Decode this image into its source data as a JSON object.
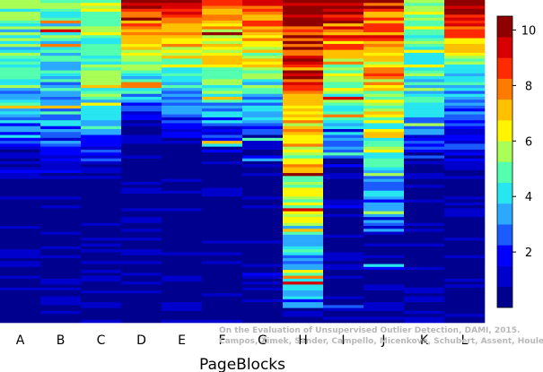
{
  "chart_data": {
    "type": "heatmap",
    "xlabel": "PageBlocks",
    "categories": [
      "A",
      "B",
      "C",
      "D",
      "E",
      "F",
      "G",
      "H",
      "I",
      "J",
      "K",
      "L"
    ],
    "colorbar": {
      "min": 0,
      "max": 10.5,
      "ticks": [
        2,
        4,
        6,
        8,
        10
      ],
      "tick_labels": [
        "2",
        "4",
        "6",
        "8",
        "10"
      ],
      "bands": [
        "#00008F",
        "#0000CC",
        "#0000FF",
        "#1A5CFF",
        "#2BA9FF",
        "#28E6F0",
        "#55FFB0",
        "#A9FF55",
        "#FFF500",
        "#FFC000",
        "#FF7A00",
        "#FF2A00",
        "#D60000",
        "#8F0000"
      ]
    },
    "columns": [
      {
        "name": "A",
        "top_value": 5.0,
        "mid_value": 2.5,
        "decay": 0.32,
        "mid_end": 0.55,
        "low_value": 0.4,
        "noise": 2.6,
        "spikes": 0.06
      },
      {
        "name": "B",
        "top_value": 4.8,
        "mid_value": 2.4,
        "decay": 0.32,
        "mid_end": 0.55,
        "low_value": 0.4,
        "noise": 2.5,
        "spikes": 0.06
      },
      {
        "name": "C",
        "top_value": 5.6,
        "mid_value": 2.8,
        "decay": 0.36,
        "mid_end": 0.55,
        "low_value": 0.35,
        "noise": 2.2,
        "spikes": 0.05
      },
      {
        "name": "D",
        "top_value": 9.5,
        "mid_value": 3.2,
        "decay": 0.22,
        "mid_end": 0.45,
        "low_value": 0.3,
        "noise": 2.4,
        "spikes": 0.05
      },
      {
        "name": "E",
        "top_value": 9.3,
        "mid_value": 3.2,
        "decay": 0.24,
        "mid_end": 0.45,
        "low_value": 0.3,
        "noise": 2.4,
        "spikes": 0.05
      },
      {
        "name": "F",
        "top_value": 8.2,
        "mid_value": 3.0,
        "decay": 0.28,
        "mid_end": 0.5,
        "low_value": 0.35,
        "noise": 2.4,
        "spikes": 0.05
      },
      {
        "name": "G",
        "top_value": 9.0,
        "mid_value": 3.0,
        "decay": 0.26,
        "mid_end": 0.5,
        "low_value": 0.3,
        "noise": 2.5,
        "spikes": 0.06
      },
      {
        "name": "H",
        "top_value": 10.2,
        "mid_value": 5.0,
        "decay": 0.45,
        "mid_end": 0.95,
        "low_value": 3.0,
        "noise": 3.0,
        "spikes": 0.12
      },
      {
        "name": "I",
        "top_value": 10.0,
        "mid_value": 3.0,
        "decay": 0.3,
        "mid_end": 0.55,
        "low_value": 0.4,
        "noise": 3.0,
        "spikes": 0.06
      },
      {
        "name": "J",
        "top_value": 8.5,
        "mid_value": 4.2,
        "decay": 0.4,
        "mid_end": 0.78,
        "low_value": 0.8,
        "noise": 3.2,
        "spikes": 0.1
      },
      {
        "name": "K",
        "top_value": 6.0,
        "mid_value": 2.6,
        "decay": 0.3,
        "mid_end": 0.55,
        "low_value": 0.4,
        "noise": 2.2,
        "spikes": 0.05
      },
      {
        "name": "L",
        "top_value": 10.4,
        "mid_value": 2.8,
        "decay": 0.22,
        "mid_end": 0.55,
        "low_value": 0.35,
        "noise": 2.2,
        "spikes": 0.05
      }
    ]
  },
  "watermark": {
    "line1": "On the Evaluation of Unsupervised Outlier Detection, DAMI, 2015.",
    "line2": "Campos, Zimek, Sander, Campello, Micenková, Schubert, Assent, Houle"
  }
}
